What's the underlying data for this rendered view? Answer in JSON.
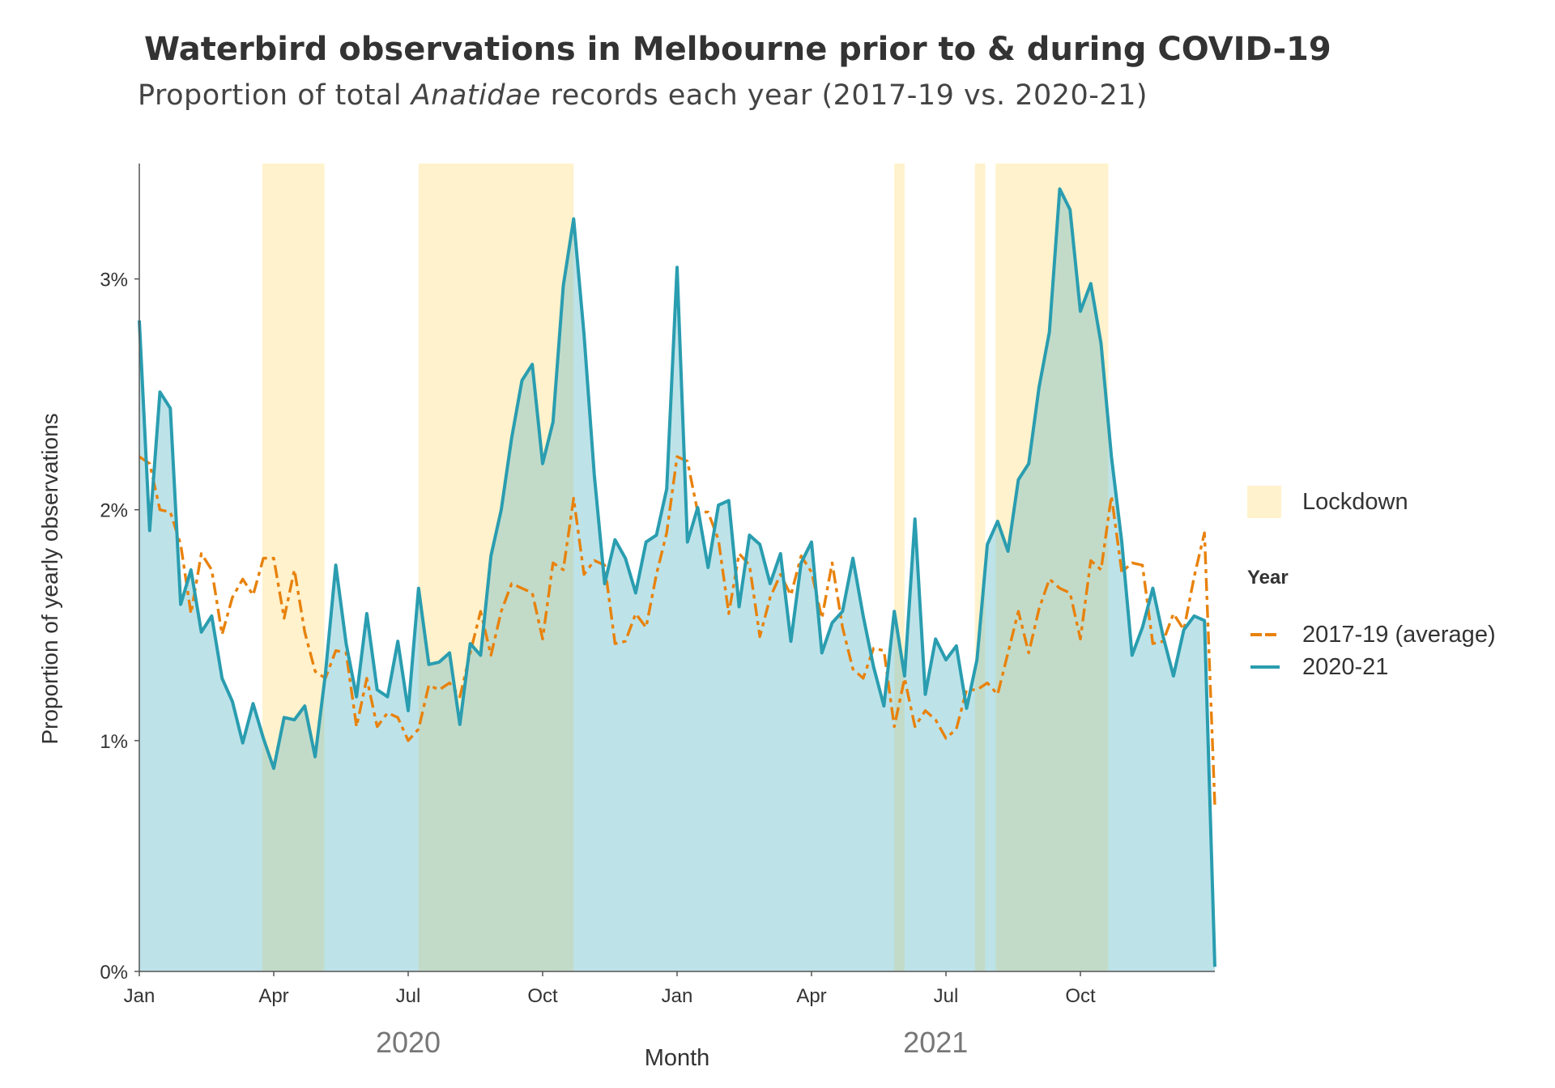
{
  "title": "Waterbird observations in Melbourne prior to & during COVID-19",
  "subtitle": {
    "before": "Proportion of total ",
    "italic": "Anatidae",
    "after": " records each year (2017-19 vs. 2020-21)"
  },
  "colors": {
    "series_2020_21": "#2a9db0",
    "series_2020_21_fill": "#bde3e9",
    "series_2017_19": "#e8820c",
    "lockdown": "#fff2cc",
    "lockdown_overlap": "#c2dbc9",
    "axis": "#555555"
  },
  "legend": {
    "lockdown_label": "Lockdown",
    "title": "Year",
    "items": [
      {
        "label": "2017-19 (average)",
        "color": "#e8820c",
        "style": "dashed"
      },
      {
        "label": "2020-21",
        "color": "#2a9db0",
        "style": "solid"
      }
    ]
  },
  "chart_data": {
    "type": "line",
    "title": "Waterbird observations in Melbourne prior to & during COVID-19",
    "subtitle": "Proportion of total Anatidae records each year (2017-19 vs. 2020-21)",
    "xlabel": "Month",
    "ylabel": "Proportion of yearly observations",
    "x_unit": "weeks since 1 Jan 2020",
    "xlim": [
      0,
      104
    ],
    "ylim": [
      0,
      3.5
    ],
    "y_ticks": [
      {
        "value": 0,
        "label": "0%"
      },
      {
        "value": 1,
        "label": "1%"
      },
      {
        "value": 2,
        "label": "2%"
      },
      {
        "value": 3,
        "label": "3%"
      }
    ],
    "x_ticks": [
      {
        "value": 0,
        "label": "Jan"
      },
      {
        "value": 13,
        "label": "Apr"
      },
      {
        "value": 26,
        "label": "Jul"
      },
      {
        "value": 39,
        "label": "Oct"
      },
      {
        "value": 52,
        "label": "Jan"
      },
      {
        "value": 65,
        "label": "Apr"
      },
      {
        "value": 78,
        "label": "Jul"
      },
      {
        "value": 91,
        "label": "Oct"
      }
    ],
    "year_labels": [
      {
        "value": 26,
        "label": "2020"
      },
      {
        "value": 77,
        "label": "2021"
      }
    ],
    "lockdowns": [
      [
        11.9,
        17.9
      ],
      [
        27,
        42
      ],
      [
        73,
        74
      ],
      [
        80.8,
        81.8
      ],
      [
        82.8,
        93.7
      ]
    ],
    "series": [
      {
        "name": "2020-21",
        "style": "solid",
        "fill": true,
        "x": [
          0,
          1,
          2,
          3,
          4,
          5,
          6,
          7,
          8,
          9,
          10,
          11,
          12,
          13,
          14,
          15,
          16,
          17,
          18,
          19,
          20,
          21,
          22,
          23,
          24,
          25,
          26,
          27,
          28,
          29,
          30,
          31,
          32,
          33,
          34,
          35,
          36,
          37,
          38,
          39,
          40,
          41,
          42,
          43,
          44,
          45,
          46,
          47,
          48,
          49,
          50,
          51,
          52,
          53,
          54,
          55,
          56,
          57,
          58,
          59,
          60,
          61,
          62,
          63,
          64,
          65,
          66,
          67,
          68,
          69,
          70,
          71,
          72,
          73,
          74,
          75,
          76,
          77,
          78,
          79,
          80,
          81,
          82,
          83,
          84,
          85,
          86,
          87,
          88,
          89,
          90,
          91,
          92,
          93,
          94,
          95,
          96,
          97,
          98,
          99,
          100,
          101,
          102,
          103,
          104
        ],
        "values": [
          2.82,
          1.91,
          2.51,
          2.44,
          1.59,
          1.74,
          1.47,
          1.54,
          1.27,
          1.17,
          0.99,
          1.16,
          1.01,
          0.88,
          1.1,
          1.09,
          1.15,
          0.93,
          1.29,
          1.76,
          1.42,
          1.19,
          1.55,
          1.22,
          1.19,
          1.43,
          1.13,
          1.66,
          1.33,
          1.34,
          1.38,
          1.07,
          1.42,
          1.37,
          1.8,
          2.0,
          2.31,
          2.56,
          2.63,
          2.2,
          2.38,
          2.97,
          3.26,
          2.76,
          2.15,
          1.68,
          1.87,
          1.79,
          1.64,
          1.86,
          1.89,
          2.09,
          3.05,
          1.86,
          2.01,
          1.75,
          2.02,
          2.04,
          1.58,
          1.89,
          1.85,
          1.68,
          1.81,
          1.43,
          1.77,
          1.86,
          1.38,
          1.51,
          1.56,
          1.79,
          1.54,
          1.32,
          1.15,
          1.56,
          1.28,
          1.96,
          1.2,
          1.44,
          1.35,
          1.41,
          1.14,
          1.35,
          1.85,
          1.95,
          1.82,
          2.13,
          2.2,
          2.53,
          2.77,
          3.39,
          3.3,
          2.86,
          2.98,
          2.72,
          2.23,
          1.86,
          1.37,
          1.49,
          1.66,
          1.45,
          1.28,
          1.48,
          1.54,
          1.52,
          0.02
        ]
      },
      {
        "name": "2017-19 (average)",
        "style": "dashed",
        "x": [
          0,
          1,
          2,
          3,
          4,
          5,
          6,
          7,
          8,
          9,
          10,
          11,
          12,
          13,
          14,
          15,
          16,
          17,
          18,
          19,
          20,
          21,
          22,
          23,
          24,
          25,
          26,
          27,
          28,
          29,
          30,
          31,
          32,
          33,
          34,
          35,
          36,
          37,
          38,
          39,
          40,
          41,
          42,
          43,
          44,
          45,
          46,
          47,
          48,
          49,
          50,
          51,
          52,
          53,
          54,
          55,
          56,
          57,
          58,
          59,
          60,
          61,
          62,
          63,
          64,
          65,
          66,
          67,
          68,
          69,
          70,
          71,
          72,
          73,
          74,
          75,
          76,
          77,
          78,
          79,
          80,
          81,
          82,
          83,
          84,
          85,
          86,
          87,
          88,
          89,
          90,
          91,
          92,
          93,
          94,
          95,
          96,
          97,
          98,
          99,
          100,
          101,
          102,
          103,
          104
        ],
        "values": [
          2.23,
          2.2,
          2.0,
          1.99,
          1.85,
          1.55,
          1.81,
          1.74,
          1.46,
          1.62,
          1.7,
          1.63,
          1.79,
          1.79,
          1.53,
          1.74,
          1.47,
          1.3,
          1.27,
          1.39,
          1.38,
          1.06,
          1.27,
          1.06,
          1.12,
          1.1,
          1.0,
          1.05,
          1.24,
          1.22,
          1.25,
          1.19,
          1.38,
          1.56,
          1.37,
          1.56,
          1.68,
          1.66,
          1.64,
          1.44,
          1.77,
          1.74,
          2.05,
          1.72,
          1.78,
          1.76,
          1.42,
          1.43,
          1.55,
          1.49,
          1.72,
          1.9,
          2.23,
          2.21,
          1.99,
          1.99,
          1.87,
          1.55,
          1.81,
          1.76,
          1.45,
          1.62,
          1.72,
          1.63,
          1.8,
          1.73,
          1.53,
          1.77,
          1.49,
          1.31,
          1.27,
          1.4,
          1.39,
          1.06,
          1.27,
          1.06,
          1.13,
          1.09,
          1.01,
          1.05,
          1.22,
          1.22,
          1.25,
          1.2,
          1.38,
          1.56,
          1.38,
          1.57,
          1.7,
          1.66,
          1.64,
          1.44,
          1.78,
          1.74,
          2.06,
          1.73,
          1.77,
          1.76,
          1.42,
          1.43,
          1.55,
          1.48,
          1.71,
          1.9,
          0.72
        ]
      }
    ]
  }
}
